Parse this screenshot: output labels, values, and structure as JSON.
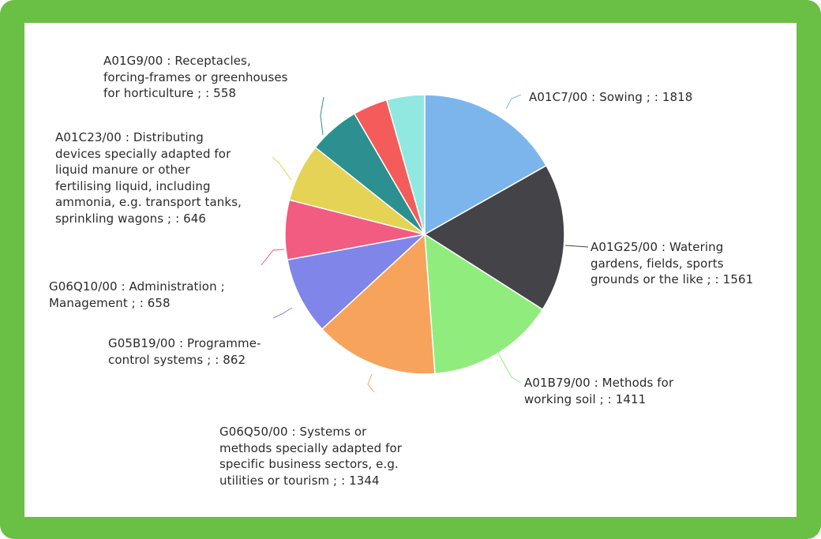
{
  "chart_data": {
    "type": "pie",
    "slices": [
      {
        "label": "A01C7/00 : Sowing ; : 1818",
        "value": 1818,
        "color": "#7cb5ec",
        "lead_color": "#7cb5ec"
      },
      {
        "label": "A01G25/00 : Watering\ngardens, fields, sports\ngrounds or the like ; : 1561",
        "value": 1561,
        "color": "#434348",
        "lead_color": "#434348"
      },
      {
        "label": "A01B79/00 : Methods for\nworking soil ; : 1411",
        "value": 1411,
        "color": "#90ed7d",
        "lead_color": "#90ed7d"
      },
      {
        "label": "G06Q50/00 : Systems or\nmethods specially adapted for\nspecific business sectors, e.g.\nutilities or tourism ; : 1344",
        "value": 1344,
        "color": "#f7a35c",
        "lead_color": "#f7a35c"
      },
      {
        "label": "G05B19/00 : Programme-\ncontrol systems ; : 862",
        "value": 862,
        "color": "#8085e9",
        "lead_color": "#8085e9"
      },
      {
        "label": "G06Q10/00 : Administration ;\nManagement ; : 658",
        "value": 658,
        "color": "#f15c80",
        "lead_color": "#f15c80"
      },
      {
        "label": "A01C23/00 : Distributing\ndevices specially adapted for\nliquid manure or other\nfertilising liquid, including\nammonia, e.g. transport tanks,\nsprinkling wagons ; : 646",
        "value": 646,
        "color": "#e4d354",
        "lead_color": "#e4d354"
      },
      {
        "label": "A01G9/00 : Receptacles,\nforcing-frames or greenhouses\nfor horticulture ; : 558",
        "value": 558,
        "color": "#2b908f",
        "lead_color": "#2b908f"
      },
      {
        "label": "",
        "value": 0,
        "color": "#f45b5b",
        "lead_color": "#f45b5b"
      },
      {
        "label": "",
        "value": 0,
        "color": "#91e8e1",
        "lead_color": "#91e8e1"
      }
    ],
    "legend": "none",
    "data_labels": "outside with connector lines"
  },
  "frame_color": "#6abf45"
}
